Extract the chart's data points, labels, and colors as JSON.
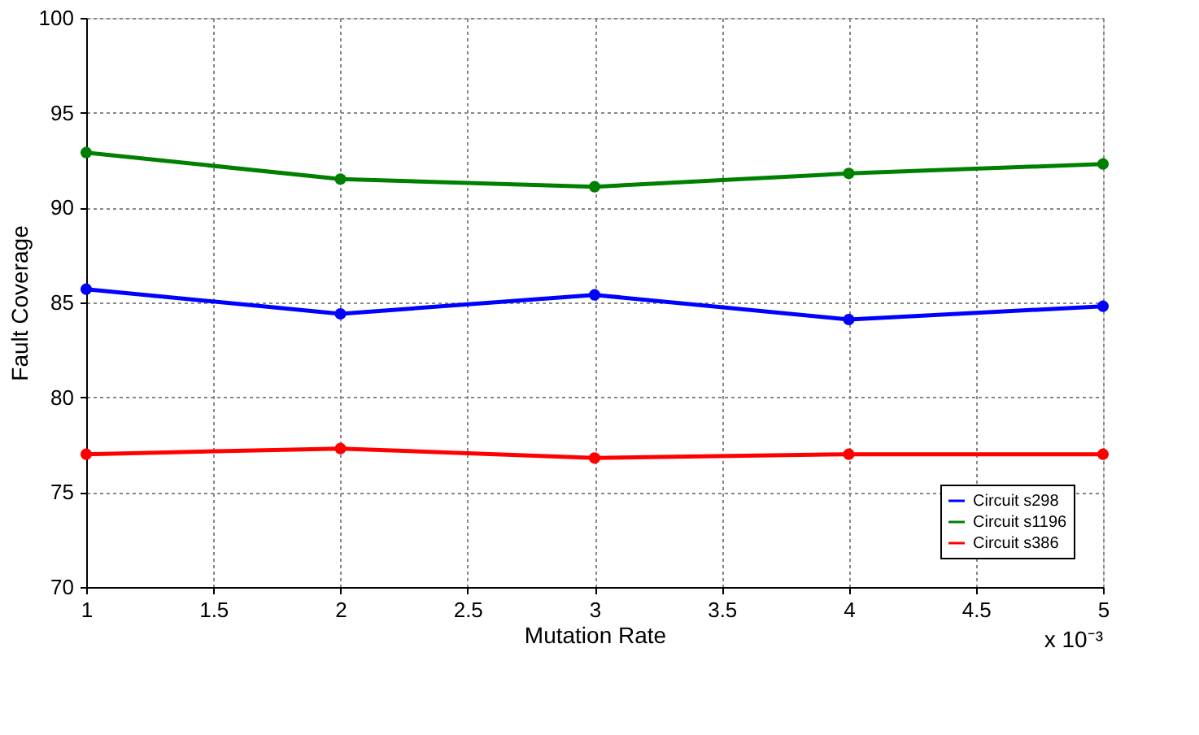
{
  "chart_data": {
    "type": "line",
    "xlabel": "Mutation Rate",
    "ylabel": "Fault Coverage",
    "x": [
      1,
      2,
      3,
      4,
      5
    ],
    "series": [
      {
        "name": "Circuit s298",
        "color": "#0000ff",
        "values": [
          85.7,
          84.4,
          85.4,
          84.1,
          84.8
        ]
      },
      {
        "name": "Circuit s1196",
        "color": "#008000",
        "values": [
          92.9,
          91.5,
          91.1,
          91.8,
          92.3
        ]
      },
      {
        "name": "Circuit s386",
        "color": "#ff0000",
        "values": [
          77.0,
          77.3,
          76.8,
          77.0,
          77.0
        ]
      }
    ],
    "xlim": [
      1,
      5
    ],
    "xticks": [
      1,
      1.5,
      2,
      2.5,
      3,
      3.5,
      4,
      4.5,
      5
    ],
    "ylim": [
      70,
      100
    ],
    "yticks": [
      70,
      75,
      80,
      85,
      90,
      95,
      100
    ],
    "annotations": [
      "x 10⁻³"
    ],
    "grid": true,
    "legend": "bottom right",
    "marker": "circle",
    "line_style": "solid"
  }
}
